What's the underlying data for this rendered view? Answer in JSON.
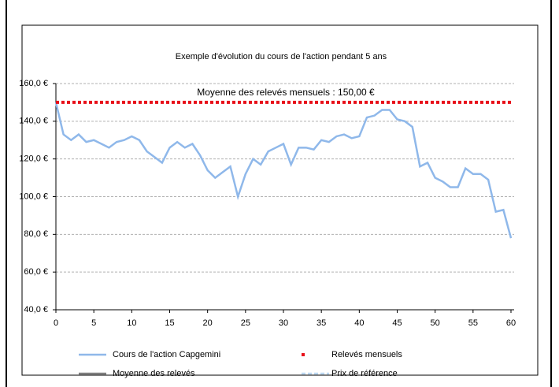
{
  "chart_data": {
    "type": "line",
    "title": "Exemple d'évolution du cours de l'action pendant 5 ans",
    "annotation": "Moyenne des relevés mensuels : 150,00 €",
    "x": [
      0,
      1,
      2,
      3,
      4,
      5,
      6,
      7,
      8,
      9,
      10,
      11,
      12,
      13,
      14,
      15,
      16,
      17,
      18,
      19,
      20,
      21,
      22,
      23,
      24,
      25,
      26,
      27,
      28,
      29,
      30,
      31,
      32,
      33,
      34,
      35,
      36,
      37,
      38,
      39,
      40,
      41,
      42,
      43,
      44,
      45,
      46,
      47,
      48,
      49,
      50,
      51,
      52,
      53,
      54,
      55,
      56,
      57,
      58,
      59,
      60
    ],
    "series": [
      {
        "name": "Cours de l'action Capgemini",
        "color": "#8fb8ea",
        "style": "solid",
        "values": [
          150,
          133,
          130,
          133,
          129,
          130,
          128,
          126,
          129,
          130,
          132,
          130,
          124,
          121,
          118,
          126,
          129,
          126,
          128,
          122,
          114,
          110,
          113,
          116,
          100,
          112,
          120,
          117,
          124,
          126,
          128,
          117,
          126,
          126,
          125,
          130,
          129,
          132,
          133,
          131,
          132,
          142,
          143,
          146,
          146,
          141,
          140,
          137,
          116,
          118,
          110,
          108,
          105,
          105,
          115,
          112,
          112,
          109,
          92,
          93,
          78
        ]
      },
      {
        "name": "Relevés mensuels",
        "color": "#e8101a",
        "style": "dots",
        "values": [
          150,
          150,
          150,
          150,
          150,
          150,
          150,
          150,
          150,
          150,
          150,
          150,
          150,
          150,
          150,
          150,
          150,
          150,
          150,
          150,
          150,
          150,
          150,
          150,
          150,
          150,
          150,
          150,
          150,
          150,
          150,
          150,
          150,
          150,
          150,
          150,
          150,
          150,
          150,
          150,
          150,
          150,
          150,
          150,
          150,
          150,
          150,
          150,
          150,
          150,
          150,
          150,
          150,
          150,
          150,
          150,
          150,
          150,
          150,
          150,
          150
        ]
      },
      {
        "name": "Moyenne des relevés",
        "color": "#808080",
        "style": "solid"
      },
      {
        "name": "Prix de référence",
        "color": "#bcd8f2",
        "style": "dashed"
      }
    ],
    "xlim": [
      0,
      60
    ],
    "xticks": [
      0,
      5,
      10,
      15,
      20,
      25,
      30,
      35,
      40,
      45,
      50,
      55,
      60
    ],
    "ylim": [
      40,
      160
    ],
    "yticks": [
      {
        "value": 40,
        "label": "40,0 €"
      },
      {
        "value": 60,
        "label": "60,0 €"
      },
      {
        "value": 80,
        "label": "80,0 €"
      },
      {
        "value": 100,
        "label": "100,0 €"
      },
      {
        "value": 120,
        "label": "120,0 €"
      },
      {
        "value": 140,
        "label": "140,0 €"
      },
      {
        "value": 160,
        "label": "160,0 €"
      }
    ],
    "grid": true,
    "legend": "bottom"
  }
}
